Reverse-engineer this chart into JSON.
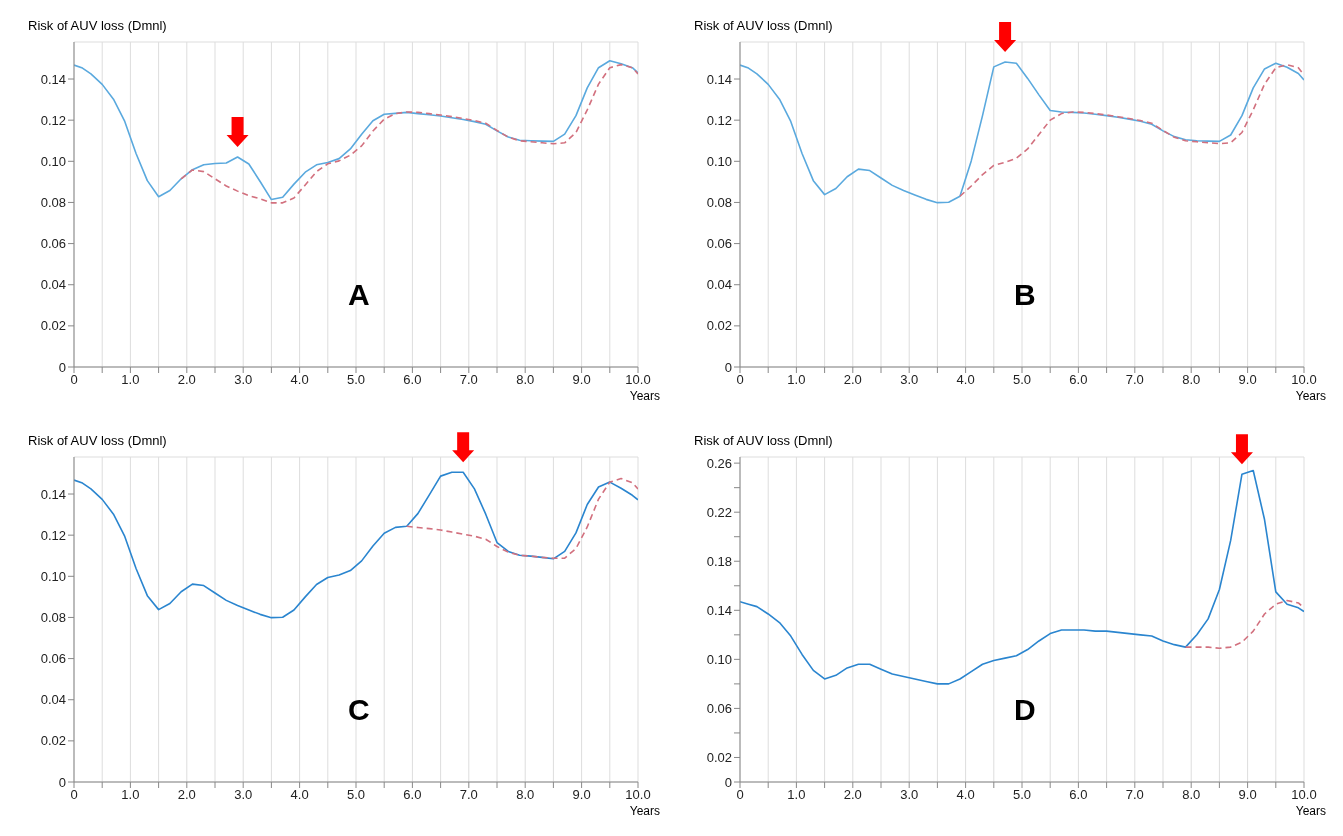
{
  "chart_data": [
    {
      "type": "line",
      "ylabel": "Risk of AUV loss (Dmnl)",
      "xlabel": "Years",
      "annotations": [
        "A"
      ],
      "grid": true,
      "x": [
        0,
        0.15,
        0.3,
        0.5,
        0.7,
        0.9,
        1.1,
        1.3,
        1.5,
        1.7,
        1.9,
        2.1,
        2.3,
        2.5,
        2.7,
        2.9,
        3.1,
        3.3,
        3.5,
        3.7,
        3.9,
        4.1,
        4.3,
        4.5,
        4.7,
        4.9,
        5.1,
        5.3,
        5.5,
        5.7,
        5.9,
        6.1,
        6.3,
        6.5,
        6.7,
        6.9,
        7.1,
        7.3,
        7.5,
        7.7,
        7.9,
        8.1,
        8.3,
        8.5,
        8.7,
        8.9,
        9.1,
        9.3,
        9.5,
        9.7,
        9.9,
        10
      ],
      "series": [
        {
          "color": "#5aa9de",
          "line_style": "solid",
          "values": [
            0.1468,
            0.1453,
            0.1425,
            0.1374,
            0.1302,
            0.1194,
            0.1038,
            0.0906,
            0.0828,
            0.0858,
            0.0915,
            0.0959,
            0.0983,
            0.0989,
            0.0992,
            0.1021,
            0.0987,
            0.0902,
            0.0814,
            0.0825,
            0.0889,
            0.0947,
            0.0983,
            0.0994,
            0.1013,
            0.106,
            0.1132,
            0.1197,
            0.1229,
            0.1233,
            0.1238,
            0.1232,
            0.1226,
            0.122,
            0.1212,
            0.1203,
            0.1193,
            0.118,
            0.1148,
            0.1118,
            0.1102,
            0.11,
            0.1098,
            0.1097,
            0.1132,
            0.1222,
            0.1357,
            0.1455,
            0.1489,
            0.1474,
            0.1455,
            0.143
          ]
        },
        {
          "color": "#d2707e",
          "line_style": "dashed",
          "values": [
            null,
            null,
            null,
            null,
            null,
            null,
            null,
            null,
            null,
            null,
            0.0915,
            0.0958,
            0.095,
            0.0915,
            0.088,
            0.0855,
            0.0833,
            0.0818,
            0.0798,
            0.0798,
            0.0822,
            0.0885,
            0.095,
            0.0988,
            0.1002,
            0.103,
            0.1075,
            0.1147,
            0.1205,
            0.1232,
            0.124,
            0.1238,
            0.1232,
            0.1225,
            0.1217,
            0.1208,
            0.1198,
            0.1185,
            0.115,
            0.1117,
            0.11,
            0.1095,
            0.109,
            0.1085,
            0.109,
            0.114,
            0.125,
            0.1375,
            0.1455,
            0.147,
            0.1455,
            0.1425
          ]
        }
      ],
      "xlim": [
        0,
        10
      ],
      "xticks": [
        {
          "value": 0,
          "label": "0"
        },
        {
          "value": 0.5,
          "label": null
        },
        {
          "value": 1,
          "label": "1.0"
        },
        {
          "value": 1.5,
          "label": null
        },
        {
          "value": 2,
          "label": "2.0"
        },
        {
          "value": 2.5,
          "label": null
        },
        {
          "value": 3,
          "label": "3.0"
        },
        {
          "value": 3.5,
          "label": null
        },
        {
          "value": 4,
          "label": "4.0"
        },
        {
          "value": 4.5,
          "label": null
        },
        {
          "value": 5,
          "label": "5.0"
        },
        {
          "value": 5.5,
          "label": null
        },
        {
          "value": 6,
          "label": "6.0"
        },
        {
          "value": 6.5,
          "label": null
        },
        {
          "value": 7,
          "label": "7.0"
        },
        {
          "value": 7.5,
          "label": null
        },
        {
          "value": 8,
          "label": "8.0"
        },
        {
          "value": 8.5,
          "label": null
        },
        {
          "value": 9,
          "label": "9.0"
        },
        {
          "value": 9.5,
          "label": null
        },
        {
          "value": 10,
          "label": "10.0"
        }
      ],
      "ylim": [
        0,
        0.158
      ],
      "yticks": [
        0,
        0.02,
        0.04,
        0.06,
        0.08,
        {
          "value": 0.1,
          "label": "0.10"
        },
        0.12,
        0.14
      ]
    },
    {
      "type": "line",
      "ylabel": "Risk of AUV loss (Dmnl)",
      "xlabel": "Years",
      "annotations": [
        "B"
      ],
      "grid": true,
      "x": [
        0,
        0.15,
        0.3,
        0.5,
        0.7,
        0.9,
        1.1,
        1.3,
        1.5,
        1.7,
        1.9,
        2.1,
        2.3,
        2.5,
        2.7,
        2.9,
        3.1,
        3.3,
        3.5,
        3.7,
        3.9,
        4.1,
        4.3,
        4.5,
        4.7,
        4.9,
        5.1,
        5.3,
        5.5,
        5.7,
        5.9,
        6.1,
        6.3,
        6.5,
        6.7,
        6.9,
        7.1,
        7.3,
        7.5,
        7.7,
        7.9,
        8.1,
        8.3,
        8.5,
        8.7,
        8.9,
        9.1,
        9.3,
        9.5,
        9.7,
        9.9,
        10
      ],
      "series": [
        {
          "color": "#5aa9de",
          "line_style": "solid",
          "values": [
            0.1468,
            0.1453,
            0.1425,
            0.1374,
            0.1302,
            0.1194,
            0.1038,
            0.0906,
            0.0838,
            0.0868,
            0.0925,
            0.0962,
            0.0955,
            0.0919,
            0.0883,
            0.0858,
            0.0836,
            0.0815,
            0.0799,
            0.0801,
            0.083,
            0.1002,
            0.1222,
            0.1459,
            0.1483,
            0.1477,
            0.1403,
            0.1323,
            0.1247,
            0.124,
            0.1238,
            0.1235,
            0.1229,
            0.1222,
            0.1214,
            0.1205,
            0.1195,
            0.118,
            0.1148,
            0.112,
            0.1105,
            0.11,
            0.1098,
            0.1097,
            0.1128,
            0.1222,
            0.1357,
            0.1449,
            0.1477,
            0.1457,
            0.1427,
            0.1395
          ]
        },
        {
          "color": "#d2707e",
          "line_style": "dashed",
          "values": [
            null,
            null,
            null,
            null,
            null,
            null,
            null,
            null,
            null,
            null,
            null,
            null,
            null,
            null,
            null,
            null,
            null,
            null,
            null,
            null,
            0.083,
            0.088,
            0.0935,
            0.098,
            0.0995,
            0.1015,
            0.106,
            0.113,
            0.12,
            0.1232,
            0.124,
            0.1238,
            0.1232,
            0.1225,
            0.1217,
            0.1208,
            0.1198,
            0.1185,
            0.115,
            0.1117,
            0.11,
            0.1095,
            0.109,
            0.1086,
            0.109,
            0.114,
            0.125,
            0.1375,
            0.1455,
            0.147,
            0.1455,
            0.142
          ]
        }
      ],
      "xlim": [
        0,
        10
      ],
      "xticks": [
        {
          "value": 0,
          "label": "0"
        },
        {
          "value": 0.5,
          "label": null
        },
        {
          "value": 1,
          "label": "1.0"
        },
        {
          "value": 1.5,
          "label": null
        },
        {
          "value": 2,
          "label": "2.0"
        },
        {
          "value": 2.5,
          "label": null
        },
        {
          "value": 3,
          "label": "3.0"
        },
        {
          "value": 3.5,
          "label": null
        },
        {
          "value": 4,
          "label": "4.0"
        },
        {
          "value": 4.5,
          "label": null
        },
        {
          "value": 5,
          "label": "5.0"
        },
        {
          "value": 5.5,
          "label": null
        },
        {
          "value": 6,
          "label": "6.0"
        },
        {
          "value": 6.5,
          "label": null
        },
        {
          "value": 7,
          "label": "7.0"
        },
        {
          "value": 7.5,
          "label": null
        },
        {
          "value": 8,
          "label": "8.0"
        },
        {
          "value": 8.5,
          "label": null
        },
        {
          "value": 9,
          "label": "9.0"
        },
        {
          "value": 9.5,
          "label": null
        },
        {
          "value": 10,
          "label": "10.0"
        }
      ],
      "ylim": [
        0,
        0.158
      ],
      "yticks": [
        0,
        0.02,
        0.04,
        0.06,
        0.08,
        {
          "value": 0.1,
          "label": "0.10"
        },
        0.12,
        0.14
      ]
    },
    {
      "type": "line",
      "ylabel": "Risk of AUV loss (Dmnl)",
      "xlabel": "Years",
      "annotations": [
        "C"
      ],
      "grid": true,
      "x": [
        0,
        0.15,
        0.3,
        0.5,
        0.7,
        0.9,
        1.1,
        1.3,
        1.5,
        1.7,
        1.9,
        2.1,
        2.3,
        2.5,
        2.7,
        2.9,
        3.1,
        3.3,
        3.5,
        3.7,
        3.9,
        4.1,
        4.3,
        4.5,
        4.7,
        4.9,
        5.1,
        5.3,
        5.5,
        5.7,
        5.9,
        6.1,
        6.3,
        6.5,
        6.7,
        6.9,
        7.1,
        7.3,
        7.5,
        7.7,
        7.9,
        8.1,
        8.3,
        8.5,
        8.7,
        8.9,
        9.1,
        9.3,
        9.5,
        9.7,
        9.9,
        10
      ],
      "series": [
        {
          "color": "#2a85cf",
          "line_style": "solid",
          "values": [
            0.1468,
            0.1453,
            0.1425,
            0.1374,
            0.1302,
            0.1194,
            0.1038,
            0.0906,
            0.0838,
            0.0868,
            0.0925,
            0.0962,
            0.0955,
            0.0919,
            0.0883,
            0.0858,
            0.0836,
            0.0815,
            0.0799,
            0.0801,
            0.0836,
            0.09,
            0.096,
            0.0994,
            0.1006,
            0.1028,
            0.1075,
            0.1147,
            0.1209,
            0.1238,
            0.1243,
            0.1306,
            0.1396,
            0.1487,
            0.1506,
            0.1506,
            0.1425,
            0.1302,
            0.1164,
            0.1121,
            0.1102,
            0.1098,
            0.1092,
            0.1085,
            0.1121,
            0.1211,
            0.1349,
            0.1434,
            0.1458,
            0.1428,
            0.1394,
            0.1372
          ]
        },
        {
          "color": "#d2707e",
          "line_style": "dashed",
          "values": [
            null,
            null,
            null,
            null,
            null,
            null,
            null,
            null,
            null,
            null,
            null,
            null,
            null,
            null,
            null,
            null,
            null,
            null,
            null,
            null,
            null,
            null,
            null,
            null,
            null,
            null,
            null,
            null,
            null,
            null,
            0.1243,
            0.1237,
            0.1232,
            0.1225,
            0.1215,
            0.1205,
            0.1195,
            0.118,
            0.1145,
            0.1117,
            0.1102,
            0.1098,
            0.1092,
            0.1088,
            0.1088,
            0.1135,
            0.124,
            0.1375,
            0.1458,
            0.1475,
            0.1455,
            0.1425
          ]
        }
      ],
      "xlim": [
        0,
        10
      ],
      "xticks": [
        {
          "value": 0,
          "label": "0"
        },
        {
          "value": 0.5,
          "label": null
        },
        {
          "value": 1,
          "label": "1.0"
        },
        {
          "value": 1.5,
          "label": null
        },
        {
          "value": 2,
          "label": "2.0"
        },
        {
          "value": 2.5,
          "label": null
        },
        {
          "value": 3,
          "label": "3.0"
        },
        {
          "value": 3.5,
          "label": null
        },
        {
          "value": 4,
          "label": "4.0"
        },
        {
          "value": 4.5,
          "label": null
        },
        {
          "value": 5,
          "label": "5.0"
        },
        {
          "value": 5.5,
          "label": null
        },
        {
          "value": 6,
          "label": "6.0"
        },
        {
          "value": 6.5,
          "label": null
        },
        {
          "value": 7,
          "label": "7.0"
        },
        {
          "value": 7.5,
          "label": null
        },
        {
          "value": 8,
          "label": "8.0"
        },
        {
          "value": 8.5,
          "label": null
        },
        {
          "value": 9,
          "label": "9.0"
        },
        {
          "value": 9.5,
          "label": null
        },
        {
          "value": 10,
          "label": "10.0"
        }
      ],
      "ylim": [
        0,
        0.158
      ],
      "yticks": [
        0,
        0.02,
        0.04,
        0.06,
        0.08,
        {
          "value": 0.1,
          "label": "0.10"
        },
        0.12,
        0.14
      ]
    },
    {
      "type": "line",
      "ylabel": "Risk of AUV loss (Dmnl)",
      "xlabel": "Years",
      "annotations": [
        "D"
      ],
      "grid": true,
      "x": [
        0,
        0.15,
        0.3,
        0.5,
        0.7,
        0.9,
        1.1,
        1.3,
        1.5,
        1.7,
        1.9,
        2.1,
        2.3,
        2.5,
        2.7,
        2.9,
        3.1,
        3.3,
        3.5,
        3.7,
        3.9,
        4.1,
        4.3,
        4.5,
        4.7,
        4.9,
        5.1,
        5.3,
        5.5,
        5.7,
        5.9,
        6.1,
        6.3,
        6.5,
        6.7,
        6.9,
        7.1,
        7.3,
        7.5,
        7.7,
        7.9,
        8.1,
        8.3,
        8.5,
        8.7,
        8.9,
        9.1,
        9.3,
        9.5,
        9.7,
        9.9,
        10
      ],
      "series": [
        {
          "color": "#2a85cf",
          "line_style": "solid",
          "values": [
            0.147,
            0.145,
            0.143,
            0.137,
            0.13,
            0.119,
            0.104,
            0.091,
            0.084,
            0.087,
            0.093,
            0.096,
            0.096,
            0.092,
            0.088,
            0.086,
            0.084,
            0.082,
            0.08,
            0.08,
            0.084,
            0.09,
            0.096,
            0.099,
            0.101,
            0.103,
            0.108,
            0.115,
            0.121,
            0.124,
            0.124,
            0.124,
            0.123,
            0.123,
            0.122,
            0.121,
            0.12,
            0.119,
            0.115,
            0.112,
            0.11,
            0.12,
            0.133,
            0.157,
            0.197,
            0.251,
            0.254,
            0.214,
            0.155,
            0.145,
            0.142,
            0.139
          ]
        },
        {
          "color": "#d2707e",
          "line_style": "dashed",
          "values": [
            null,
            null,
            null,
            null,
            null,
            null,
            null,
            null,
            null,
            null,
            null,
            null,
            null,
            null,
            null,
            null,
            null,
            null,
            null,
            null,
            null,
            null,
            null,
            null,
            null,
            null,
            null,
            null,
            null,
            null,
            null,
            null,
            null,
            null,
            null,
            null,
            null,
            null,
            null,
            null,
            0.11,
            0.11,
            0.11,
            0.109,
            0.11,
            0.114,
            0.123,
            0.137,
            0.145,
            0.148,
            0.146,
            0.142
          ]
        }
      ],
      "xlim": [
        0,
        10
      ],
      "xticks": [
        {
          "value": 0,
          "label": "0"
        },
        {
          "value": 0.5,
          "label": null
        },
        {
          "value": 1,
          "label": "1.0"
        },
        {
          "value": 1.5,
          "label": null
        },
        {
          "value": 2,
          "label": "2.0"
        },
        {
          "value": 2.5,
          "label": null
        },
        {
          "value": 3,
          "label": "3.0"
        },
        {
          "value": 3.5,
          "label": null
        },
        {
          "value": 4,
          "label": "4.0"
        },
        {
          "value": 4.5,
          "label": null
        },
        {
          "value": 5,
          "label": "5.0"
        },
        {
          "value": 5.5,
          "label": null
        },
        {
          "value": 6,
          "label": "6.0"
        },
        {
          "value": 6.5,
          "label": null
        },
        {
          "value": 7,
          "label": "7.0"
        },
        {
          "value": 7.5,
          "label": null
        },
        {
          "value": 8,
          "label": "8.0"
        },
        {
          "value": 8.5,
          "label": null
        },
        {
          "value": 9,
          "label": "9.0"
        },
        {
          "value": 9.5,
          "label": null
        },
        {
          "value": 10,
          "label": "10.0"
        }
      ],
      "ylim": [
        0,
        0.265
      ],
      "yticks": [
        0,
        0.02,
        {
          "value": 0.04,
          "label": null
        },
        0.06,
        {
          "value": 0.08,
          "label": null
        },
        {
          "value": 0.1,
          "label": "0.10"
        },
        {
          "value": 0.12,
          "label": null
        },
        0.14,
        {
          "value": 0.16,
          "label": null
        },
        0.18,
        {
          "value": 0.2,
          "label": null
        },
        0.22,
        {
          "value": 0.24,
          "label": null
        },
        0.26
      ]
    }
  ]
}
